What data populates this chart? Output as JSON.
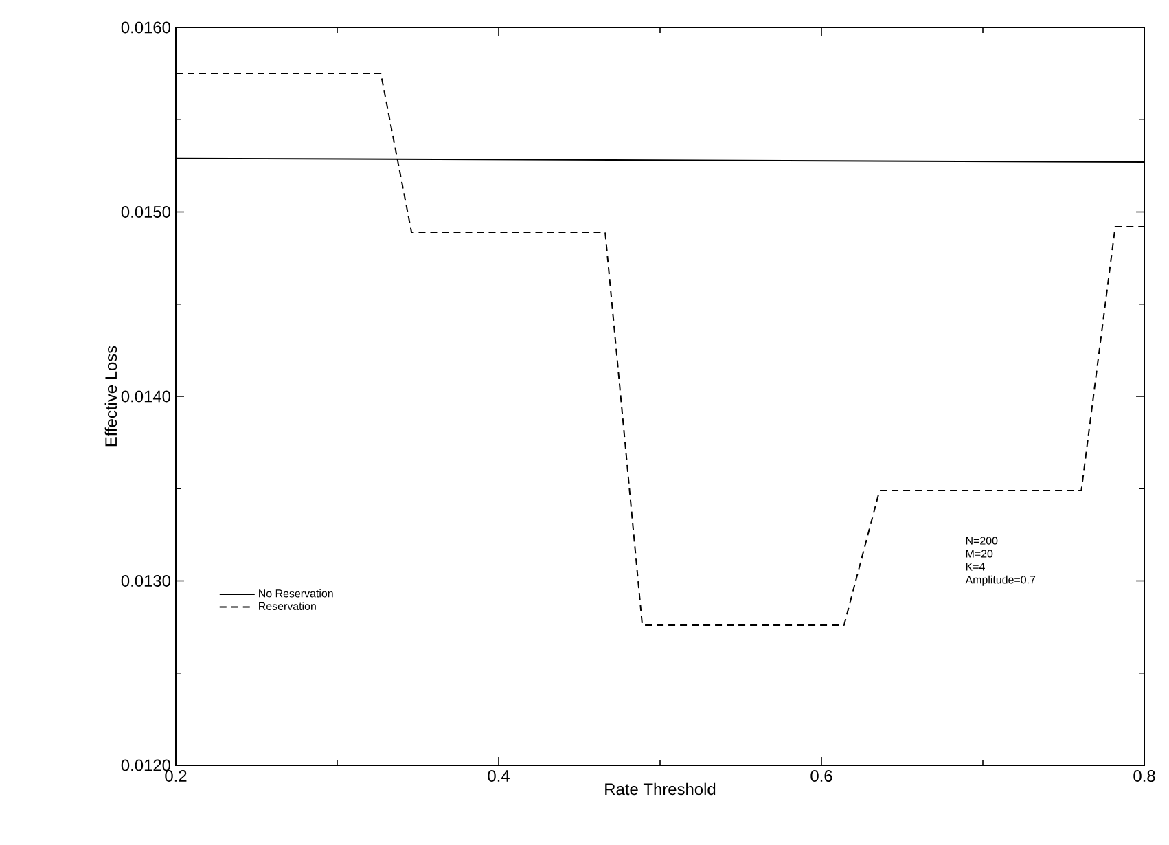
{
  "chart_data": {
    "type": "line",
    "xlabel": "Rate Threshold",
    "ylabel": "Effective Loss",
    "xlim": [
      0.2,
      0.8
    ],
    "ylim": [
      0.012,
      0.016
    ],
    "xticks": [
      0.2,
      {
        "value": 0.3,
        "label": null
      },
      0.4,
      {
        "value": 0.5,
        "label": null
      },
      0.6,
      {
        "value": 0.7,
        "label": null
      },
      0.8
    ],
    "yticks": [
      {
        "value": 0.012,
        "label": "0.0120"
      },
      {
        "value": 0.0125,
        "label": null
      },
      {
        "value": 0.013,
        "label": "0.0130"
      },
      {
        "value": 0.0135,
        "label": null
      },
      {
        "value": 0.014,
        "label": "0.0140"
      },
      {
        "value": 0.0145,
        "label": null
      },
      {
        "value": 0.015,
        "label": "0.0150"
      },
      {
        "value": 0.0155,
        "label": null
      },
      {
        "value": 0.016,
        "label": "0.0160"
      }
    ],
    "legend": "bottom left",
    "series": [
      {
        "name": "No Reservation",
        "color": "#000000",
        "line_style": "solid",
        "x": [
          0.2,
          0.8
        ],
        "values": [
          0.01529,
          0.01527
        ]
      },
      {
        "name": "Reservation",
        "color": "#000000",
        "line_style": "dashed",
        "x": [
          0.2,
          0.327,
          0.346,
          0.466,
          0.489,
          0.614,
          0.636,
          0.761,
          0.782,
          0.8
        ],
        "values": [
          0.01575,
          0.01575,
          0.01489,
          0.01489,
          0.01276,
          0.01276,
          0.01349,
          0.01349,
          0.01492,
          0.01492
        ]
      }
    ],
    "annotations": [
      "N=200",
      "M=20",
      "K=4",
      "Amplitude=0.7"
    ]
  }
}
